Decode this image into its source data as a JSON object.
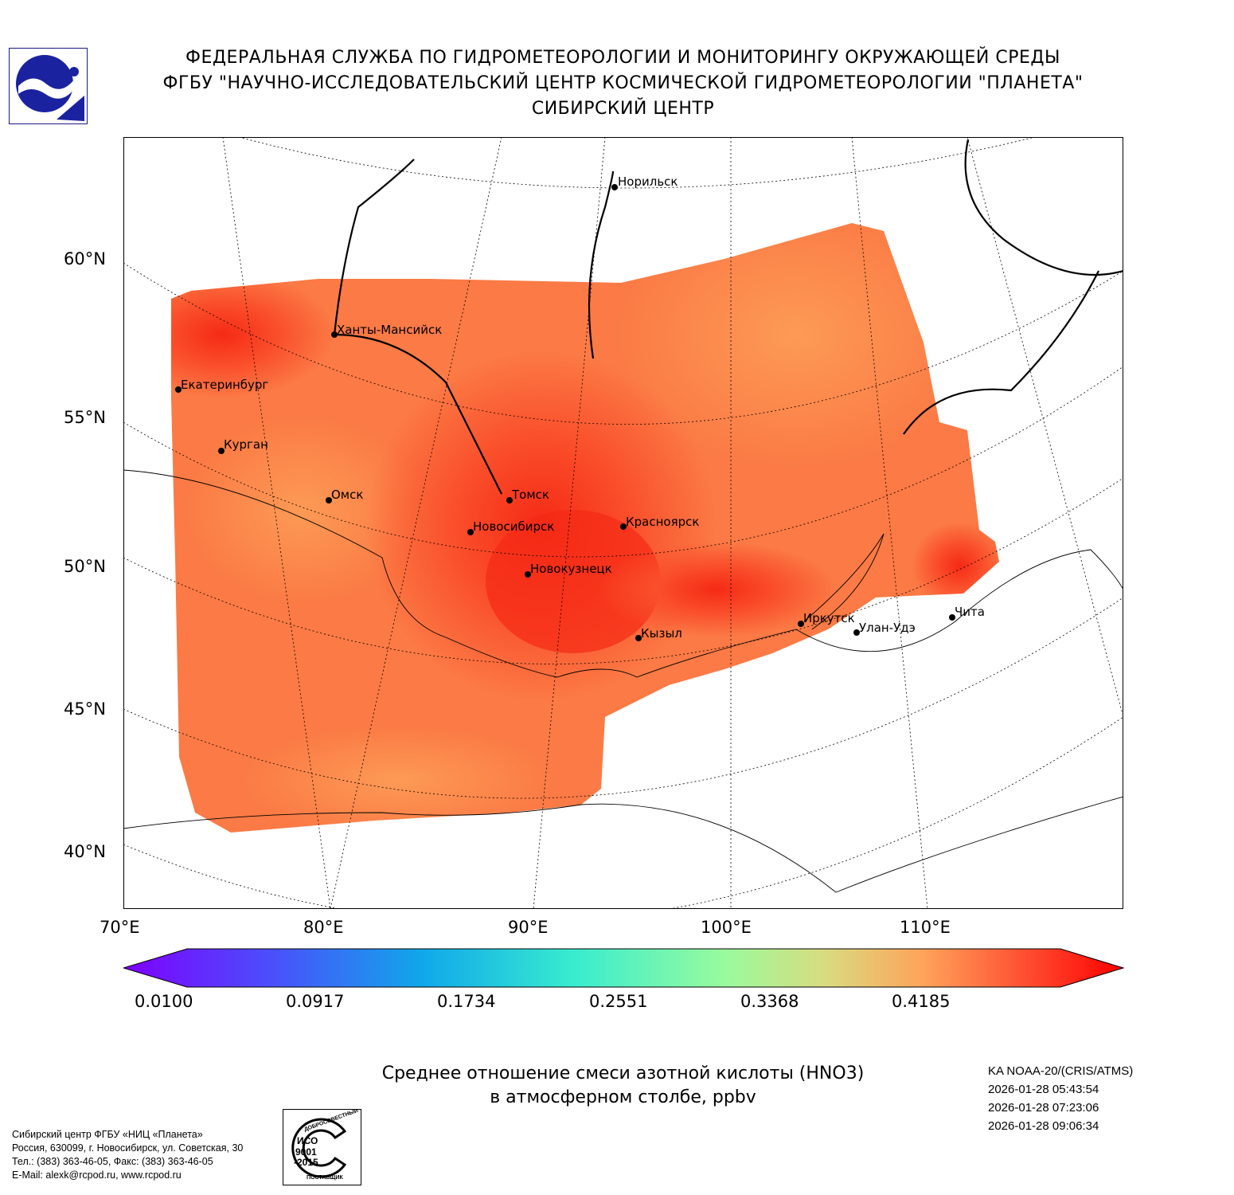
{
  "header": {
    "line1": "ФЕДЕРАЛЬНАЯ СЛУЖБА ПО ГИДРОМЕТЕОРОЛОГИИ И МОНИТОРИНГУ ОКРУЖАЮЩЕЙ СРЕДЫ",
    "line2": "ФГБУ \"НАУЧНО-ИССЛЕДОВАТЕЛЬСКИЙ ЦЕНТР КОСМИЧЕСКОЙ ГИДРОМЕТЕОРОЛОГИИ \"ПЛАНЕТА\"",
    "line3": "СИБИРСКИЙ ЦЕНТР"
  },
  "map": {
    "lat_labels": [
      "60°N",
      "55°N",
      "50°N",
      "45°N",
      "40°N"
    ],
    "lon_labels": [
      "70°E",
      "80°E",
      "90°E",
      "100°E",
      "110°E"
    ],
    "cities": [
      "Норильск",
      "Ханты-Мансийск",
      "Екатеринбург",
      "Курган",
      "Омск",
      "Томск",
      "Новосибирск",
      "Красноярск",
      "Новокузнецк",
      "Иркутск",
      "Улан-Удэ",
      "Чита",
      "Кызыл"
    ]
  },
  "colorbar": {
    "ticks": [
      "0.0100",
      "0.0917",
      "0.1734",
      "0.2551",
      "0.3368",
      "0.4185"
    ],
    "min_color": "#7f00ff",
    "max_color": "#ff0000"
  },
  "title": {
    "line1": "Среднее отношение смеси азотной кислоты (HNO3)",
    "line2": "в атмосферном столбе, ppbv"
  },
  "meta": {
    "satellite": "KA NOAA-20/(CRIS/ATMS)",
    "times": [
      "2026-01-28 05:43:54",
      "2026-01-28 07:23:06",
      "2026-01-28 09:06:34"
    ]
  },
  "footer": {
    "address": [
      "Сибирский центр ФГБУ «НИЦ «Планета»",
      "Россия, 630099, г. Новосибирск, ул. Советская, 30",
      "Тел.: (383) 363-46-05, Факс: (383) 363-46-05",
      "E-Mail: alexk@rcpod.ru, www.rcpod.ru"
    ],
    "iso_stamp": [
      "ДОБРОСОВЕСТНЫЙ",
      "ИСО",
      "9001",
      "-2015",
      "ПОСТАВЩИК"
    ]
  }
}
